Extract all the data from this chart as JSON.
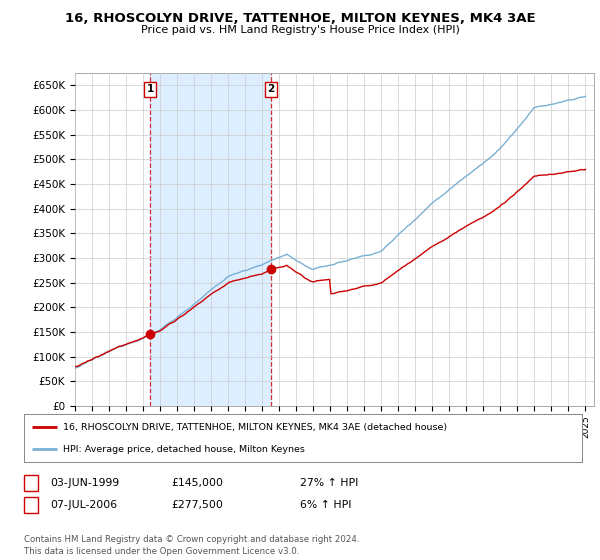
{
  "title": "16, RHOSCOLYN DRIVE, TATTENHOE, MILTON KEYNES, MK4 3AE",
  "subtitle": "Price paid vs. HM Land Registry's House Price Index (HPI)",
  "ylim": [
    0,
    675000
  ],
  "yticks": [
    0,
    50000,
    100000,
    150000,
    200000,
    250000,
    300000,
    350000,
    400000,
    450000,
    500000,
    550000,
    600000,
    650000
  ],
  "ytick_labels": [
    "£0",
    "£50K",
    "£100K",
    "£150K",
    "£200K",
    "£250K",
    "£300K",
    "£350K",
    "£400K",
    "£450K",
    "£500K",
    "£550K",
    "£600K",
    "£650K"
  ],
  "sale1_date": 1999.42,
  "sale1_price": 145000,
  "sale2_date": 2006.52,
  "sale2_price": 277500,
  "sale1_date_str": "03-JUN-1999",
  "sale1_price_str": "£145,000",
  "sale1_hpi_str": "27% ↑ HPI",
  "sale2_date_str": "07-JUL-2006",
  "sale2_price_str": "£277,500",
  "sale2_hpi_str": "6% ↑ HPI",
  "legend_line1": "16, RHOSCOLYN DRIVE, TATTENHOE, MILTON KEYNES, MK4 3AE (detached house)",
  "legend_line2": "HPI: Average price, detached house, Milton Keynes",
  "footer1": "Contains HM Land Registry data © Crown copyright and database right 2024.",
  "footer2": "This data is licensed under the Open Government Licence v3.0.",
  "line_color_red": "#cc0000",
  "line_color_blue": "#7ab0d4",
  "shade_color": "#ddeeff",
  "grid_color": "#cccccc",
  "bg_color": "#ffffff"
}
